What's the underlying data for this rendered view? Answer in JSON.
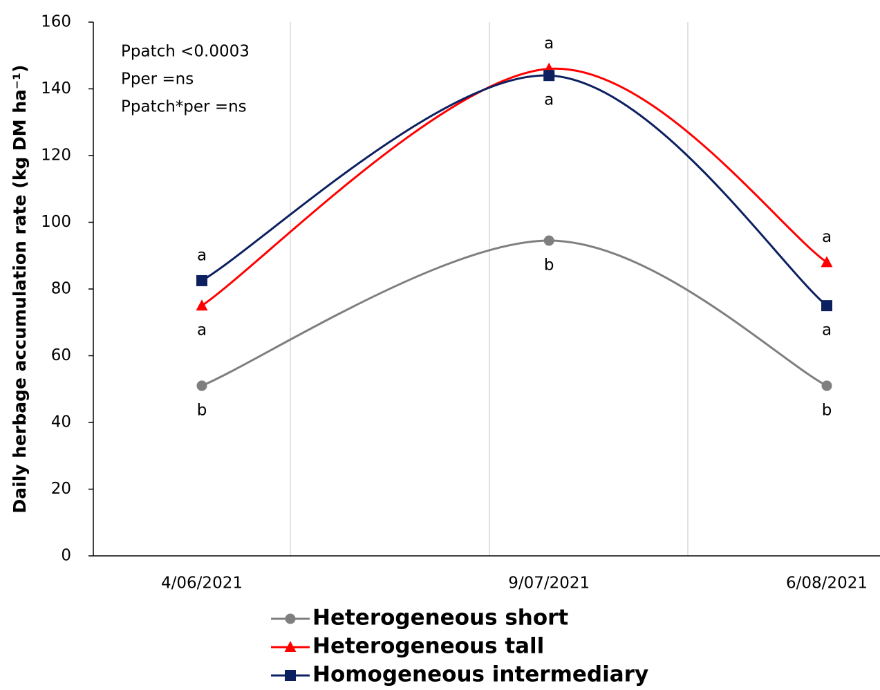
{
  "chart_data": {
    "type": "line",
    "y_label": "Daily herbage accumulation rate (kg DM ha⁻¹)",
    "annotations": [
      "Ppatch <0.0003",
      "Pper =ns",
      "Ppatch*per =ns"
    ],
    "x": [
      "4/06/2021",
      "9/07/2021",
      "6/08/2021"
    ],
    "series": [
      {
        "name": "Heterogeneous short",
        "color": "#7f7f7f",
        "marker": "circle",
        "values": [
          51,
          94.5,
          51
        ],
        "letters": [
          "b",
          "b",
          "b"
        ]
      },
      {
        "name": "Heterogeneous tall",
        "color": "#ff0000",
        "marker": "triangle",
        "values": [
          75,
          146,
          88
        ],
        "letters": [
          "a",
          "a",
          "a"
        ]
      },
      {
        "name": "Homogeneous intermediary",
        "color": "#0c2060",
        "marker": "square",
        "values": [
          82.5,
          144,
          75
        ],
        "letters": [
          "a",
          "a",
          "a"
        ]
      }
    ],
    "ylim": [
      0,
      160
    ],
    "yticks": [
      0,
      20,
      40,
      60,
      80,
      100,
      120,
      140,
      160
    ]
  }
}
